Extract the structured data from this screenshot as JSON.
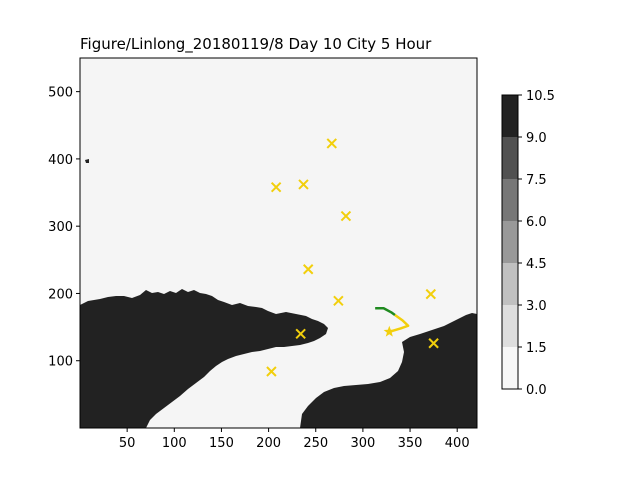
{
  "chart_data": {
    "type": "scatter",
    "title": "Figure/Linlong_20180119/8 Day 10 City 5 Hour",
    "xlabel": "",
    "ylabel": "",
    "xlim": [
      0,
      421
    ],
    "ylim": [
      0,
      550
    ],
    "x_ticks": [
      50,
      100,
      150,
      200,
      250,
      300,
      350,
      400
    ],
    "y_ticks": [
      100,
      200,
      300,
      400,
      500
    ],
    "grid": false,
    "background_field": {
      "description": "filled contour map (land dark, water light)",
      "land_color": "#222222",
      "water_color": "#f5f5f5"
    },
    "cities": {
      "marker": "x",
      "color": "#f2cf0c",
      "points": [
        {
          "x": 267,
          "y": 423
        },
        {
          "x": 208,
          "y": 358
        },
        {
          "x": 237,
          "y": 362
        },
        {
          "x": 282,
          "y": 315
        },
        {
          "x": 242,
          "y": 236
        },
        {
          "x": 372,
          "y": 199
        },
        {
          "x": 274,
          "y": 189
        },
        {
          "x": 234,
          "y": 140
        },
        {
          "x": 203,
          "y": 84
        },
        {
          "x": 375,
          "y": 126
        }
      ]
    },
    "start_marker": {
      "marker": "star",
      "color": "#f2cf0c",
      "x": 328,
      "y": 143
    },
    "route_green": {
      "color": "#1f8a1f",
      "points": [
        [
          313,
          178
        ],
        [
          322,
          178
        ],
        [
          330,
          172
        ],
        [
          334,
          168
        ]
      ]
    },
    "route_yellow": {
      "color": "#f2cf0c",
      "points": [
        [
          334,
          168
        ],
        [
          342,
          160
        ],
        [
          348,
          152
        ],
        [
          340,
          148
        ],
        [
          328,
          143
        ]
      ]
    },
    "colorbar": {
      "levels": [
        0.0,
        1.5,
        3.0,
        4.5,
        6.0,
        7.5,
        9.0,
        10.5
      ],
      "tick_labels": [
        "0.0",
        "1.5",
        "3.0",
        "4.5",
        "6.0",
        "7.5",
        "9.0",
        "10.5"
      ],
      "colors": [
        "#f7f7f7",
        "#dedede",
        "#c0c0c0",
        "#999999",
        "#777777",
        "#515151",
        "#222222"
      ]
    }
  }
}
